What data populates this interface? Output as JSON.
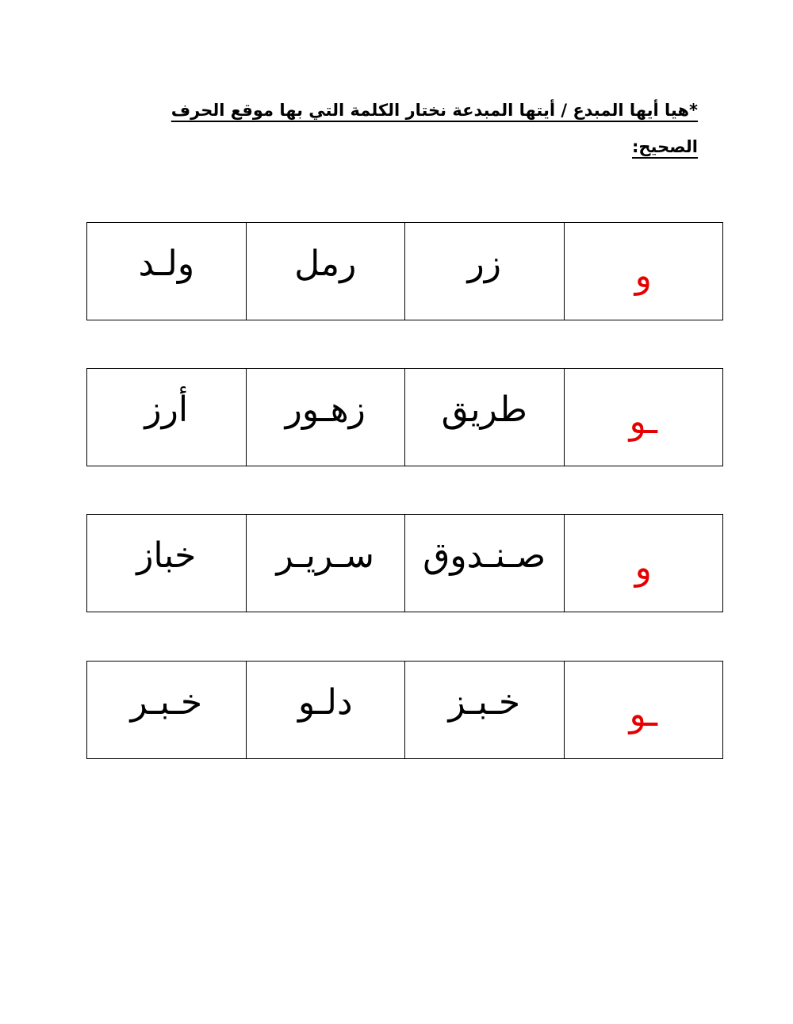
{
  "instruction": "*هيا أيها المبدع / أيتها المبدعة نختار الكلمة التي بها موقع الحرف الصحيح:",
  "letter_color": "#e60000",
  "rows": [
    {
      "letter": "و",
      "words": [
        "زر",
        "رمل",
        "ولـد"
      ]
    },
    {
      "letter": "ـو",
      "words": [
        "طريق",
        "زهـور",
        "أرز"
      ]
    },
    {
      "letter": "و",
      "words": [
        "صـنـدوق",
        "سـريـر",
        "خباز"
      ]
    },
    {
      "letter": "ـو",
      "words": [
        "خـبـز",
        "دلـو",
        "خـبـر"
      ]
    }
  ]
}
